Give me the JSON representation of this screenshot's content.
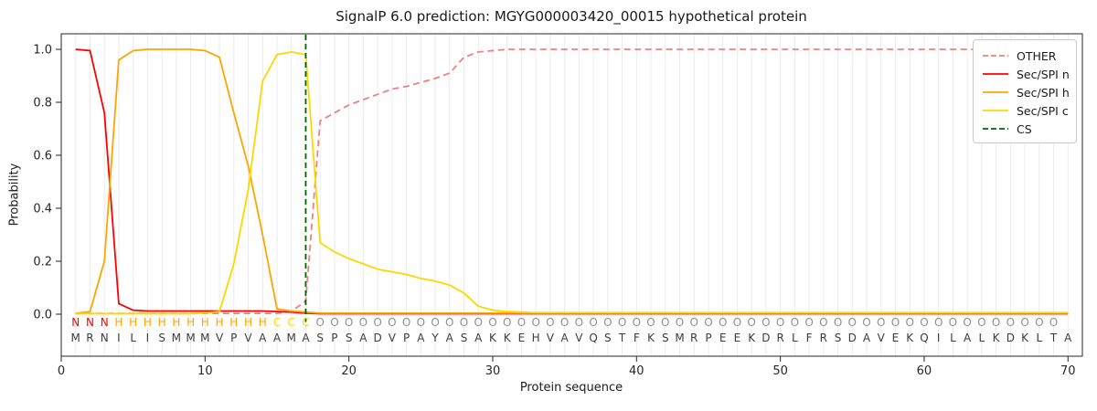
{
  "chart_data": {
    "type": "line",
    "title": "SignalP 6.0 prediction: MGYG000003420_00015 hypothetical protein",
    "xlabel": "Protein sequence",
    "ylabel": "Probability",
    "xlim": [
      0,
      71
    ],
    "ylim": [
      -0.16,
      1.06
    ],
    "xticks": [
      0,
      10,
      20,
      30,
      40,
      50,
      60,
      70
    ],
    "yticks": [
      "0.0",
      "0.2",
      "0.4",
      "0.6",
      "0.8",
      "1.0"
    ],
    "grid": {
      "vertical_per_residue": true,
      "color": "#ebebeb"
    },
    "legend_position": "upper right",
    "sequence": "MRNILISMMMVPVAAMASPSADVPAYASAKKEHVAVQSTFKSMRPEEKDRLFRSDAVEKQILALKDKLTA",
    "region_labels": "NNNHHHHHHHHHHHCCCOOOOOOOOOOOOOOOOOOOOOOOOOOOOOOOOOOOOOOOOOOOOOOOOOOOO",
    "region_colors": {
      "N": "#ff0000",
      "H": "#ffa500",
      "C": "#ffd700",
      "O": "#8f8f8f"
    },
    "sequence_color": "#3d3d3d",
    "series": [
      {
        "name": "OTHER",
        "color": "#f08080",
        "dash": "7,4.5",
        "values": [
          0.003,
          0.003,
          0.003,
          0.003,
          0.003,
          0.003,
          0.003,
          0.003,
          0.003,
          0.003,
          0.003,
          0.003,
          0.003,
          0.003,
          0.003,
          0.01,
          0.05,
          0.73,
          0.76,
          0.79,
          0.81,
          0.83,
          0.85,
          0.86,
          0.875,
          0.89,
          0.91,
          0.97,
          0.99,
          0.995,
          1.0,
          1.0,
          1.0,
          1.0,
          1.0,
          1.0,
          1.0,
          1.0,
          1.0,
          1.0,
          1.0,
          1.0,
          1.0,
          1.0,
          1.0,
          1.0,
          1.0,
          1.0,
          1.0,
          1.0,
          1.0,
          1.0,
          1.0,
          1.0,
          1.0,
          1.0,
          1.0,
          1.0,
          1.0,
          1.0,
          1.0,
          1.0,
          1.0,
          1.0,
          1.0,
          1.0,
          1.0,
          1.0,
          1.0,
          1.0
        ]
      },
      {
        "name": "Sec/SPI n",
        "color": "#ff0000",
        "dash": null,
        "values": [
          1.0,
          0.995,
          0.76,
          0.04,
          0.015,
          0.012,
          0.012,
          0.012,
          0.012,
          0.012,
          0.012,
          0.012,
          0.012,
          0.012,
          0.01,
          0.008,
          0.004,
          0.002,
          0.002,
          0.002,
          0.002,
          0.002,
          0.002,
          0.002,
          0.002,
          0.002,
          0.002,
          0.002,
          0.002,
          0.002,
          0.002,
          0.002,
          0.002,
          0.002,
          0.002,
          0.002,
          0.002,
          0.002,
          0.002,
          0.002,
          0.002,
          0.002,
          0.002,
          0.002,
          0.002,
          0.002,
          0.002,
          0.002,
          0.002,
          0.002,
          0.002,
          0.002,
          0.002,
          0.002,
          0.002,
          0.002,
          0.002,
          0.002,
          0.002,
          0.002,
          0.002,
          0.002,
          0.002,
          0.002,
          0.002,
          0.002,
          0.002,
          0.002,
          0.002,
          0.002
        ]
      },
      {
        "name": "Sec/SPI h",
        "color": "#ffa500",
        "dash": null,
        "values": [
          0.003,
          0.01,
          0.2,
          0.96,
          0.995,
          1.0,
          1.0,
          1.0,
          1.0,
          0.995,
          0.97,
          0.76,
          0.56,
          0.3,
          0.02,
          0.012,
          0.008,
          0.004,
          0.004,
          0.004,
          0.004,
          0.004,
          0.004,
          0.004,
          0.004,
          0.004,
          0.004,
          0.004,
          0.004,
          0.004,
          0.004,
          0.004,
          0.004,
          0.004,
          0.004,
          0.004,
          0.004,
          0.004,
          0.004,
          0.004,
          0.004,
          0.004,
          0.004,
          0.004,
          0.004,
          0.004,
          0.004,
          0.004,
          0.004,
          0.004,
          0.004,
          0.004,
          0.004,
          0.004,
          0.004,
          0.004,
          0.004,
          0.004,
          0.004,
          0.004,
          0.004,
          0.004,
          0.004,
          0.004,
          0.004,
          0.004,
          0.004,
          0.004,
          0.004,
          0.004
        ]
      },
      {
        "name": "Sec/SPI c",
        "color": "#ffd700",
        "dash": null,
        "values": [
          0.002,
          0.002,
          0.002,
          0.002,
          0.002,
          0.002,
          0.002,
          0.002,
          0.002,
          0.005,
          0.01,
          0.19,
          0.47,
          0.88,
          0.98,
          0.99,
          0.98,
          0.27,
          0.235,
          0.21,
          0.19,
          0.17,
          0.16,
          0.15,
          0.135,
          0.125,
          0.11,
          0.08,
          0.03,
          0.015,
          0.01,
          0.008,
          0.006,
          0.006,
          0.006,
          0.006,
          0.006,
          0.006,
          0.006,
          0.006,
          0.006,
          0.006,
          0.006,
          0.006,
          0.006,
          0.006,
          0.006,
          0.006,
          0.006,
          0.006,
          0.006,
          0.006,
          0.006,
          0.006,
          0.006,
          0.006,
          0.006,
          0.006,
          0.006,
          0.006,
          0.006,
          0.006,
          0.006,
          0.006,
          0.006,
          0.006,
          0.006,
          0.006,
          0.006,
          0.006
        ]
      }
    ],
    "cs_marker": {
      "label": "CS",
      "x": 17,
      "color": "#006400",
      "dash": "6,4"
    },
    "legend": {
      "items": [
        {
          "label": "OTHER",
          "color": "#f08080",
          "dash": "6,3"
        },
        {
          "label": "Sec/SPI n",
          "color": "#ff0000",
          "dash": null
        },
        {
          "label": "Sec/SPI h",
          "color": "#ffa500",
          "dash": null
        },
        {
          "label": "Sec/SPI c",
          "color": "#ffd700",
          "dash": null
        },
        {
          "label": "CS",
          "color": "#006400",
          "dash": "6,3"
        }
      ]
    }
  }
}
